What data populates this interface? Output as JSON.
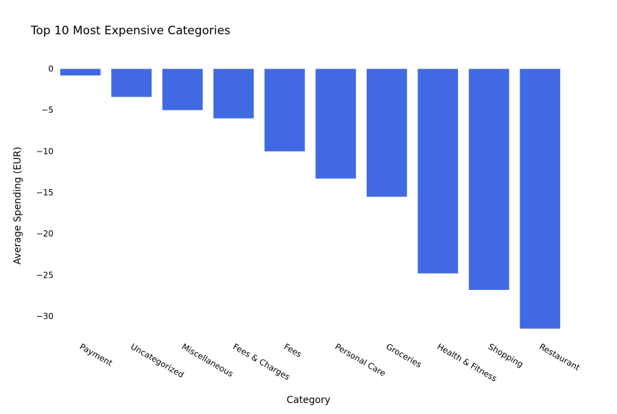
{
  "chart_data": {
    "type": "bar",
    "title": "Top 10 Most Expensive Categories",
    "xlabel": "Category",
    "ylabel": "Average Spending (EUR)",
    "categories": [
      "Payment",
      "Uncategorized",
      "Miscellaneous",
      "Fees & Charges",
      "Fees",
      "Personal Care",
      "Groceries",
      "Health & Fitness",
      "Shopping",
      "Restaurant"
    ],
    "values": [
      -0.8,
      -3.4,
      -5.0,
      -6.0,
      -10.0,
      -13.3,
      -15.5,
      -24.8,
      -26.8,
      -31.5
    ],
    "ylim": [
      -32.5,
      0
    ],
    "yticks": [
      0,
      -5,
      -10,
      -15,
      -20,
      -25,
      -30
    ],
    "ytick_labels": [
      "0",
      "−5",
      "−10",
      "−15",
      "−20",
      "−25",
      "−30"
    ],
    "bar_color": "#4169E1",
    "grid": false,
    "legend": false
  }
}
